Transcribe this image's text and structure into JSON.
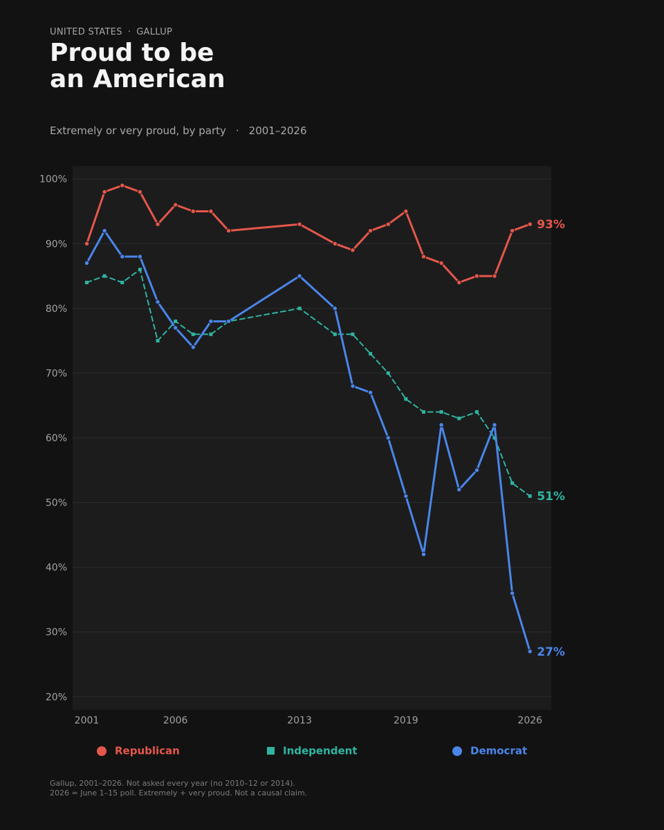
{
  "header": {
    "kicker_region": "UNITED STATES",
    "kicker_sep": "·",
    "kicker_source": "GALLUP",
    "title_line1": "Proud to be",
    "title_line2": "an American",
    "subtitle_measure": "Extremely or very proud, by party",
    "subtitle_sep": "·",
    "subtitle_range": "2001–2026"
  },
  "colors": {
    "background": "#121213",
    "plot_background": "#1c1c1d",
    "gridline": "#2c2c2e",
    "republican": "#e5574a",
    "independent": "#2fb5a1",
    "democrat": "#4a86ea"
  },
  "chart_data": {
    "type": "line",
    "title": "Proud to be an American",
    "subtitle": "Extremely or very proud, by party · 2001–2026",
    "xlabel": "",
    "ylabel": "",
    "xlim": [
      2000.2,
      2027.2
    ],
    "ylim": [
      18,
      102
    ],
    "yticks": [
      20,
      30,
      40,
      50,
      60,
      70,
      80,
      90,
      100
    ],
    "ytick_labels": [
      "20%",
      "30%",
      "40%",
      "50%",
      "60%",
      "70%",
      "80%",
      "90%",
      "100%"
    ],
    "xticks": [
      2001,
      2006,
      2013,
      2019,
      2026
    ],
    "xtick_labels": [
      "2001",
      "2006",
      "2013",
      "2019",
      "2026"
    ],
    "grid": "horizontal",
    "legend_position": "bottom",
    "series": [
      {
        "name": "Republican",
        "color": "#e5574a",
        "style": "solid",
        "marker": "circle",
        "end_label": "93%",
        "points": [
          [
            2001,
            90
          ],
          [
            2002,
            98
          ],
          [
            2003,
            99
          ],
          [
            2004,
            98
          ],
          [
            2005,
            93
          ],
          [
            2006,
            96
          ],
          [
            2007,
            95
          ],
          [
            2008,
            95
          ],
          [
            2009,
            92
          ],
          [
            2013,
            93
          ],
          [
            2015,
            90
          ],
          [
            2016,
            89
          ],
          [
            2017,
            92
          ],
          [
            2018,
            93
          ],
          [
            2019,
            95
          ],
          [
            2020,
            88
          ],
          [
            2021,
            87
          ],
          [
            2022,
            84
          ],
          [
            2023,
            85
          ],
          [
            2024,
            85
          ],
          [
            2025,
            92
          ],
          [
            2026,
            93
          ]
        ]
      },
      {
        "name": "Independent",
        "color": "#2fb5a1",
        "style": "dashed",
        "marker": "square",
        "end_label": "51%",
        "points": [
          [
            2001,
            84
          ],
          [
            2002,
            85
          ],
          [
            2003,
            84
          ],
          [
            2004,
            86
          ],
          [
            2005,
            75
          ],
          [
            2006,
            78
          ],
          [
            2007,
            76
          ],
          [
            2008,
            76
          ],
          [
            2009,
            78
          ],
          [
            2013,
            80
          ],
          [
            2015,
            76
          ],
          [
            2016,
            76
          ],
          [
            2017,
            73
          ],
          [
            2018,
            70
          ],
          [
            2019,
            66
          ],
          [
            2020,
            64
          ],
          [
            2021,
            64
          ],
          [
            2022,
            63
          ],
          [
            2023,
            64
          ],
          [
            2024,
            60
          ],
          [
            2025,
            53
          ],
          [
            2026,
            51
          ]
        ]
      },
      {
        "name": "Democrat",
        "color": "#4a86ea",
        "style": "solid",
        "marker": "circle",
        "end_label": "27%",
        "points": [
          [
            2001,
            87
          ],
          [
            2002,
            92
          ],
          [
            2003,
            88
          ],
          [
            2004,
            88
          ],
          [
            2005,
            81
          ],
          [
            2006,
            77
          ],
          [
            2007,
            74
          ],
          [
            2008,
            78
          ],
          [
            2009,
            78
          ],
          [
            2013,
            85
          ],
          [
            2015,
            80
          ],
          [
            2016,
            68
          ],
          [
            2017,
            67
          ],
          [
            2018,
            60
          ],
          [
            2019,
            51
          ],
          [
            2020,
            42
          ],
          [
            2021,
            62
          ],
          [
            2022,
            52
          ],
          [
            2023,
            55
          ],
          [
            2024,
            62
          ],
          [
            2025,
            36
          ],
          [
            2026,
            27
          ]
        ]
      }
    ]
  },
  "legend": {
    "items": [
      {
        "label": "Republican",
        "color": "#e5574a",
        "icon": "circle-marker-icon"
      },
      {
        "label": "Independent",
        "color": "#2fb5a1",
        "icon": "square-marker-icon"
      },
      {
        "label": "Democrat",
        "color": "#4a86ea",
        "icon": "circle-marker-icon"
      }
    ]
  },
  "footnote": {
    "line1": "Gallup, 2001–2026. Not asked every year (no 2010–12 or 2014).",
    "line2": "2026 = June 1–15 poll. Extremely + very proud. Not a causal claim."
  }
}
